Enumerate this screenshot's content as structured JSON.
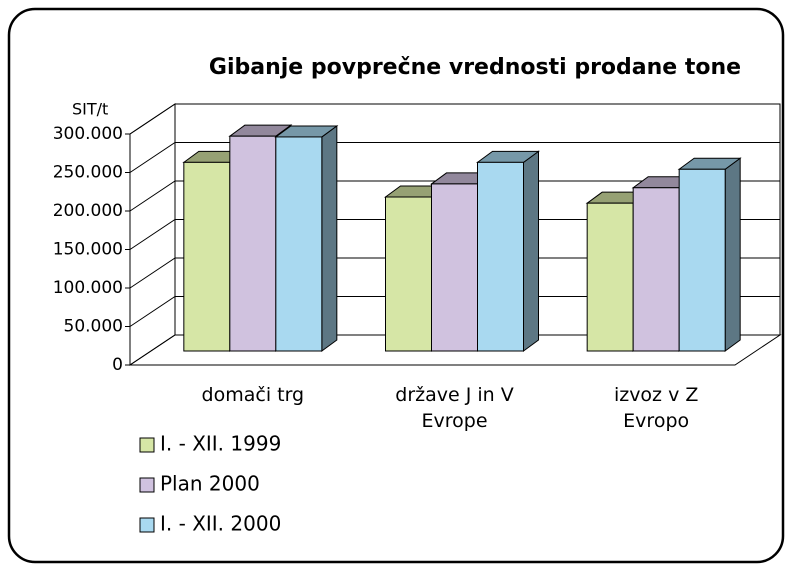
{
  "chart_data": {
    "type": "bar3d",
    "title": "Gibanje povprečne vrednosti prodane tone",
    "y_unit": "SIT/t",
    "categories": [
      "domači trg",
      "države J in V Evrope",
      "izvoz v Z Evropo"
    ],
    "series": [
      {
        "name": "I. - XII. 1999",
        "color": "#d6e6a6",
        "values": [
          245000,
          200000,
          192000
        ]
      },
      {
        "name": "Plan 2000",
        "color": "#d0c2df",
        "values": [
          279000,
          217000,
          212000
        ]
      },
      {
        "name": "I. - XII. 2000",
        "color": "#a9d9f0",
        "values": [
          278000,
          245000,
          236000
        ]
      }
    ],
    "ylim": [
      0,
      300000
    ],
    "yticks": [
      {
        "value": 0,
        "label": "0"
      },
      {
        "value": 50000,
        "label": "50.000"
      },
      {
        "value": 100000,
        "label": "100.000"
      },
      {
        "value": 150000,
        "label": "150.000"
      },
      {
        "value": 200000,
        "label": "200.000"
      },
      {
        "value": 250000,
        "label": "250.000"
      },
      {
        "value": 300000,
        "label": "300.000"
      }
    ],
    "grid": true
  }
}
